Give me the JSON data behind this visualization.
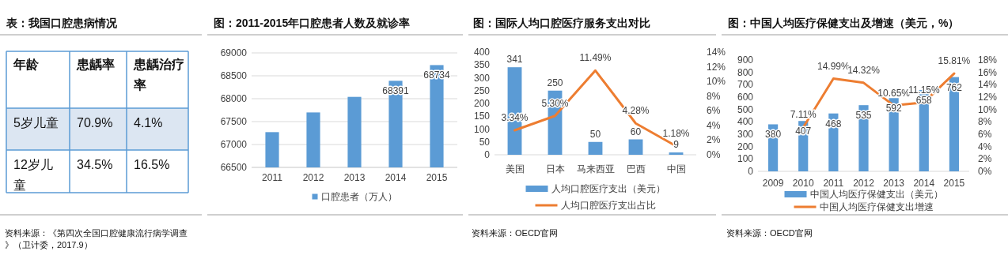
{
  "chart_data": [
    {
      "type": "other",
      "title": "表：我国口腔患病情况",
      "categories": [
        "年龄",
        "患龋率",
        "患龋治疗率"
      ],
      "y_categories": [
        "5岁儿童",
        "12岁儿童"
      ],
      "cell_labels": [
        [
          "70.9%",
          "4.1%"
        ],
        [
          "34.5%",
          "16.5%"
        ]
      ],
      "annotations": [
        "资料来源：《第四次全国口腔健康流行病学调查》（卫计委，2017.9）"
      ]
    },
    {
      "type": "bar",
      "title": "图：2011-2015年口腔患者人数及就诊率",
      "categories": [
        "2011",
        "2012",
        "2013",
        "2014",
        "2015"
      ],
      "series": [
        {
          "name": "口腔患者（万人）",
          "color": "#5b9bd5",
          "values": [
            67270,
            67700,
            68040,
            68391,
            68734
          ],
          "value_labels": [
            null,
            null,
            null,
            "68391",
            "68734"
          ]
        }
      ],
      "ylim": [
        66500,
        69000
      ],
      "yticks": [
        66500,
        67000,
        67500,
        68000,
        68500,
        69000
      ],
      "grid": "y",
      "legend": "bottom"
    },
    {
      "type": "bar",
      "title": "图：国际人均口腔医疗服务支出对比",
      "categories": [
        "美国",
        "日本",
        "马来西亚",
        "巴西",
        "中国"
      ],
      "series": [
        {
          "name": "人均口腔医疗支出（美元）",
          "color": "#5b9bd5",
          "values": [
            341,
            250,
            50,
            60,
            9
          ],
          "value_labels": [
            "341",
            "250",
            "50",
            "60",
            "9"
          ]
        },
        {
          "name": "人均口腔医疗支出占比",
          "type": "line",
          "axis": "y2",
          "color": "#ed7d31",
          "values": [
            3.34,
            5.3,
            11.49,
            4.28,
            1.18
          ],
          "value_labels": [
            "3.34%",
            "5.30%",
            "11.49%",
            "4.28%",
            "1.18%"
          ]
        }
      ],
      "ylim": [
        0,
        400
      ],
      "yticks": [
        0,
        50,
        100,
        150,
        200,
        250,
        300,
        350,
        400
      ],
      "y2lim": [
        0,
        14
      ],
      "y2ticks": [
        {
          "value": 0,
          "label": "0%"
        },
        {
          "value": 2,
          "label": "2%"
        },
        {
          "value": 4,
          "label": "4%"
        },
        {
          "value": 6,
          "label": "6%"
        },
        {
          "value": 8,
          "label": "8%"
        },
        {
          "value": 10,
          "label": "10%"
        },
        {
          "value": 12,
          "label": "12%"
        },
        {
          "value": 14,
          "label": "14%"
        }
      ],
      "legend": "bottom",
      "annotations": [
        "资料来源：OECD官网"
      ]
    },
    {
      "type": "bar",
      "title": "图：中国人均医疗保健支出及增速（美元，%）",
      "categories": [
        "2009",
        "2010",
        "2011",
        "2012",
        "2013",
        "2014",
        "2015"
      ],
      "series": [
        {
          "name": "中国人均医疗保健支出（美元）",
          "color": "#5b9bd5",
          "values": [
            380,
            407,
            468,
            535,
            592,
            658,
            762
          ],
          "value_labels": [
            "380",
            "407",
            "468",
            "535",
            "592",
            "658",
            "762"
          ]
        },
        {
          "name": "中国人均医疗保健支出增速",
          "type": "line",
          "axis": "y2",
          "color": "#ed7d31",
          "values": [
            null,
            7.11,
            14.99,
            14.32,
            10.65,
            11.15,
            15.81
          ],
          "value_labels": [
            null,
            "7.11%",
            "14.99%",
            "14.32%",
            "10.65%",
            "11.15%",
            "15.81%"
          ]
        }
      ],
      "ylim": [
        0,
        900
      ],
      "yticks": [
        0,
        100,
        200,
        300,
        400,
        500,
        600,
        700,
        800,
        900
      ],
      "y2lim": [
        0,
        18
      ],
      "y2ticks": [
        {
          "value": 0,
          "label": "0%"
        },
        {
          "value": 2,
          "label": "2%"
        },
        {
          "value": 4,
          "label": "4%"
        },
        {
          "value": 6,
          "label": "6%"
        },
        {
          "value": 8,
          "label": "8%"
        },
        {
          "value": 10,
          "label": "10%"
        },
        {
          "value": 12,
          "label": "12%"
        },
        {
          "value": 14,
          "label": "14%"
        },
        {
          "value": 16,
          "label": "16%"
        },
        {
          "value": 18,
          "label": "18%"
        }
      ],
      "legend": "bottom",
      "annotations": [
        "资料来源：OECD官网"
      ]
    }
  ]
}
